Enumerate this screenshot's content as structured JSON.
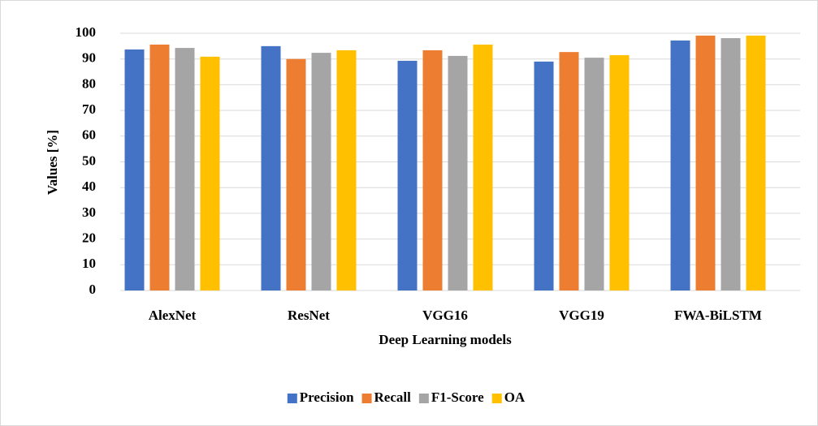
{
  "chart_data": {
    "type": "bar",
    "x_label": "Deep Learning models",
    "y_label": "Values [%]",
    "categories": [
      "AlexNet",
      "ResNet",
      "VGG16",
      "VGG19",
      "FWA-BiLSTM"
    ],
    "series": [
      {
        "name": "Precision",
        "color": "#4472c4",
        "values": [
          93.7,
          95,
          89.3,
          89,
          97.2
        ]
      },
      {
        "name": "Recall",
        "color": "#ed7d31",
        "values": [
          95.6,
          90,
          93.4,
          92.7,
          99.1
        ]
      },
      {
        "name": "F1-Score",
        "color": "#a5a5a5",
        "values": [
          94.3,
          92.4,
          91.2,
          90.5,
          98.1
        ]
      },
      {
        "name": "OA",
        "color": "#ffc000",
        "values": [
          90.9,
          93.4,
          95.6,
          91.5,
          99.1
        ]
      }
    ],
    "ylim": [
      0,
      100
    ],
    "yticks": [
      0,
      10,
      20,
      30,
      40,
      50,
      60,
      70,
      80,
      90,
      100
    ],
    "grid": true,
    "legend": "bottom"
  }
}
